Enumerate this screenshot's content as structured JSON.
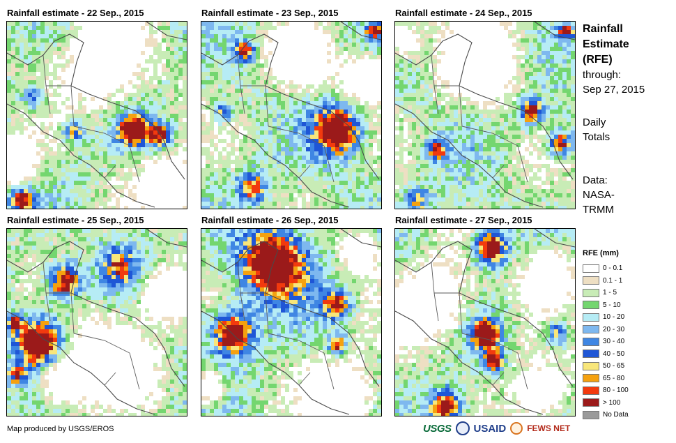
{
  "panels": [
    {
      "title": "Rainfall estimate - 22 Sep., 2015",
      "seed": 22,
      "hotspots": [
        {
          "u": 0.7,
          "v": 0.58,
          "r": 0.06,
          "s": 1.0
        },
        {
          "u": 0.85,
          "v": 0.6,
          "r": 0.05,
          "s": 0.8
        },
        {
          "u": 0.37,
          "v": 0.58,
          "r": 0.04,
          "s": 0.7
        },
        {
          "u": 0.08,
          "v": 0.95,
          "r": 0.05,
          "s": 0.8
        },
        {
          "u": 0.15,
          "v": 0.4,
          "r": 0.05,
          "s": 0.55
        }
      ],
      "dry": [
        {
          "u": 0.55,
          "v": 0.22,
          "r": 0.22
        },
        {
          "u": 0.05,
          "v": 0.75,
          "r": 0.12
        },
        {
          "u": 0.93,
          "v": 0.88,
          "r": 0.16
        }
      ]
    },
    {
      "title": "Rainfall estimate - 23 Sep., 2015",
      "seed": 23,
      "hotspots": [
        {
          "u": 0.76,
          "v": 0.58,
          "r": 0.1,
          "s": 1.0
        },
        {
          "u": 0.24,
          "v": 0.16,
          "r": 0.04,
          "s": 0.8
        },
        {
          "u": 0.96,
          "v": 0.05,
          "r": 0.03,
          "s": 0.8
        },
        {
          "u": 0.28,
          "v": 0.88,
          "r": 0.06,
          "s": 0.7
        },
        {
          "u": 0.12,
          "v": 0.48,
          "r": 0.04,
          "s": 0.6
        }
      ],
      "dry": [
        {
          "u": 0.55,
          "v": 0.2,
          "r": 0.15
        },
        {
          "u": 0.9,
          "v": 0.3,
          "r": 0.12
        }
      ]
    },
    {
      "title": "Rainfall estimate - 24 Sep., 2015",
      "seed": 24,
      "hotspots": [
        {
          "u": 0.76,
          "v": 0.48,
          "r": 0.05,
          "s": 0.9
        },
        {
          "u": 0.92,
          "v": 0.65,
          "r": 0.05,
          "s": 0.85
        },
        {
          "u": 0.23,
          "v": 0.68,
          "r": 0.04,
          "s": 0.7
        },
        {
          "u": 0.95,
          "v": 0.05,
          "r": 0.03,
          "s": 0.8
        },
        {
          "u": 0.12,
          "v": 0.95,
          "r": 0.05,
          "s": 0.6
        }
      ],
      "dry": [
        {
          "u": 0.5,
          "v": 0.2,
          "r": 0.2
        },
        {
          "u": 0.05,
          "v": 0.1,
          "r": 0.08
        }
      ]
    },
    {
      "title": "Rainfall estimate - 25 Sep., 2015",
      "seed": 25,
      "hotspots": [
        {
          "u": 0.32,
          "v": 0.28,
          "r": 0.07,
          "s": 1.0
        },
        {
          "u": 0.18,
          "v": 0.6,
          "r": 0.1,
          "s": 1.0
        },
        {
          "u": 0.04,
          "v": 0.5,
          "r": 0.03,
          "s": 0.8
        },
        {
          "u": 0.05,
          "v": 0.78,
          "r": 0.04,
          "s": 0.6
        },
        {
          "u": 0.62,
          "v": 0.2,
          "r": 0.08,
          "s": 0.55
        }
      ],
      "dry": [
        {
          "u": 0.55,
          "v": 0.7,
          "r": 0.22
        },
        {
          "u": 0.88,
          "v": 0.35,
          "r": 0.14
        },
        {
          "u": 0.3,
          "v": 0.8,
          "r": 0.12
        }
      ]
    },
    {
      "title": "Rainfall estimate - 26 Sep., 2015",
      "seed": 26,
      "hotspots": [
        {
          "u": 0.4,
          "v": 0.18,
          "r": 0.14,
          "s": 1.05
        },
        {
          "u": 0.17,
          "v": 0.55,
          "r": 0.09,
          "s": 1.0
        },
        {
          "u": 0.75,
          "v": 0.4,
          "r": 0.06,
          "s": 0.8
        },
        {
          "u": 0.76,
          "v": 0.62,
          "r": 0.04,
          "s": 0.75
        }
      ],
      "dry": [
        {
          "u": 0.78,
          "v": 0.88,
          "r": 0.18
        },
        {
          "u": 0.88,
          "v": 0.12,
          "r": 0.1
        },
        {
          "u": 0.05,
          "v": 0.85,
          "r": 0.08
        }
      ]
    },
    {
      "title": "Rainfall estimate - 27 Sep., 2015",
      "seed": 27,
      "hotspots": [
        {
          "u": 0.53,
          "v": 0.1,
          "r": 0.07,
          "s": 1.0
        },
        {
          "u": 0.5,
          "v": 0.56,
          "r": 0.06,
          "s": 1.0
        },
        {
          "u": 0.55,
          "v": 0.7,
          "r": 0.04,
          "s": 0.9
        },
        {
          "u": 0.28,
          "v": 0.95,
          "r": 0.07,
          "s": 0.95
        },
        {
          "u": 0.9,
          "v": 0.55,
          "r": 0.05,
          "s": 0.6
        }
      ],
      "dry": [
        {
          "u": 0.2,
          "v": 0.4,
          "r": 0.2
        },
        {
          "u": 0.85,
          "v": 0.25,
          "r": 0.15
        },
        {
          "u": 0.8,
          "v": 0.88,
          "r": 0.14
        }
      ]
    }
  ],
  "side": {
    "title_lines": [
      "Rainfall",
      "Estimate",
      "(RFE)"
    ],
    "through_label": "through:",
    "through_date": "Sep 27, 2015",
    "totals_lines": [
      "Daily",
      "Totals"
    ],
    "source_lines": [
      "Data:",
      "NASA-",
      "TRMM"
    ]
  },
  "legend": {
    "title": "RFE (mm)",
    "items": [
      {
        "label": "0 - 0.1",
        "color": "#ffffff"
      },
      {
        "label": "0.1 - 1",
        "color": "#eedfc3"
      },
      {
        "label": "1 - 5",
        "color": "#c8ecb6"
      },
      {
        "label": "5 - 10",
        "color": "#74d66f"
      },
      {
        "label": "10 - 20",
        "color": "#b6ecf5"
      },
      {
        "label": "20 - 30",
        "color": "#7eb8ef"
      },
      {
        "label": "30 - 40",
        "color": "#3f86e3"
      },
      {
        "label": "40 - 50",
        "color": "#1f56d6"
      },
      {
        "label": "50 - 65",
        "color": "#f8e67a"
      },
      {
        "label": "65 - 80",
        "color": "#f5a10f"
      },
      {
        "label": "80 - 100",
        "color": "#f23a0e"
      },
      {
        "label": "> 100",
        "color": "#9b1a1a"
      },
      {
        "label": "No Data",
        "color": "#9a9a9a"
      }
    ]
  },
  "credit": "Map produced by USGS/EROS",
  "logos": {
    "usgs": "USGS",
    "usaid": "USAID",
    "fews": "FEWS NET"
  }
}
